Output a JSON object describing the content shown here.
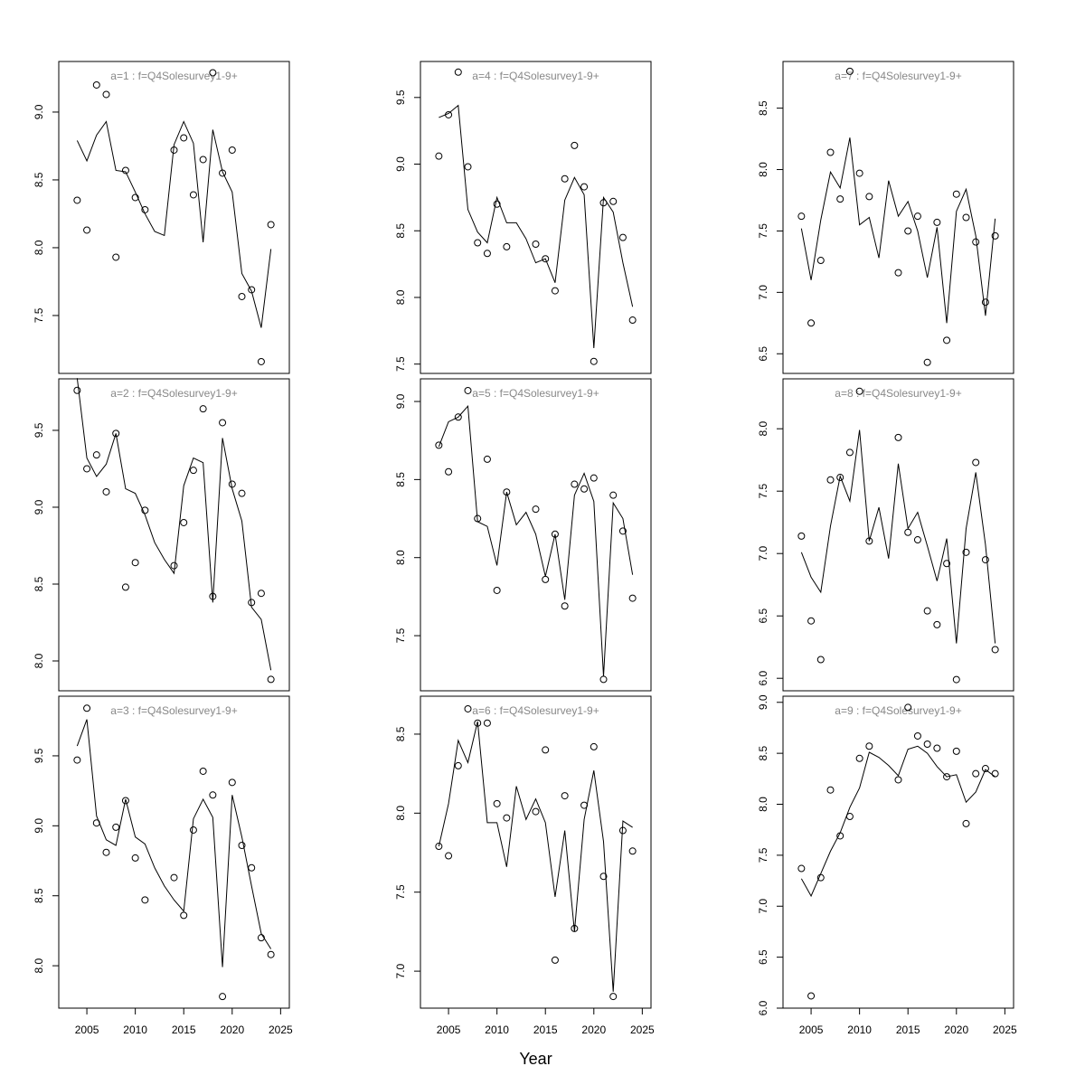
{
  "chart_data": [
    {
      "type": "line",
      "title": "a=1  :  f=Q4Solesurvey1-9+",
      "x": [
        2004,
        2005,
        2006,
        2007,
        2008,
        2009,
        2010,
        2011,
        2012,
        2013,
        2014,
        2015,
        2016,
        2017,
        2018,
        2019,
        2020,
        2021,
        2022,
        2023,
        2024
      ],
      "series": [
        {
          "mode": "points",
          "color": "#000000",
          "values": [
            8.35,
            8.13,
            9.2,
            9.13,
            7.93,
            8.57,
            8.37,
            8.28,
            null,
            null,
            8.72,
            8.81,
            8.39,
            8.65,
            9.29,
            8.55,
            8.72,
            7.64,
            7.69,
            7.16,
            8.17
          ]
        },
        {
          "mode": "line",
          "color": "#000000",
          "values": [
            8.79,
            8.64,
            8.83,
            8.93,
            8.57,
            8.56,
            8.41,
            8.25,
            8.12,
            8.09,
            8.76,
            8.93,
            8.77,
            8.04,
            8.87,
            8.56,
            8.41,
            7.81,
            7.68,
            7.41,
            7.99
          ]
        }
      ],
      "xlim": [
        2002.1,
        2025.9
      ],
      "ylim": [
        7.073,
        9.373
      ],
      "yticks": [
        {
          "value": 7.5,
          "label": "7.5"
        },
        {
          "value": 8,
          "label": "8.0"
        },
        {
          "value": 8.5,
          "label": "8.5"
        },
        {
          "value": 9,
          "label": "9.0"
        }
      ]
    },
    {
      "type": "line",
      "title": "a=2  :  f=Q4Solesurvey1-9+",
      "x": [
        2004,
        2005,
        2006,
        2007,
        2008,
        2009,
        2010,
        2011,
        2012,
        2013,
        2014,
        2015,
        2016,
        2017,
        2018,
        2019,
        2020,
        2021,
        2022,
        2023,
        2024
      ],
      "series": [
        {
          "mode": "points",
          "color": "#000000",
          "values": [
            9.76,
            9.25,
            9.34,
            9.1,
            9.48,
            8.48,
            8.64,
            8.98,
            null,
            null,
            8.62,
            8.9,
            9.24,
            9.64,
            8.42,
            9.55,
            9.15,
            9.09,
            8.38,
            8.44,
            7.88
          ]
        },
        {
          "mode": "line",
          "color": "#000000",
          "values": [
            9.84,
            9.32,
            9.2,
            9.28,
            9.48,
            9.12,
            9.09,
            8.95,
            8.77,
            8.66,
            8.57,
            9.14,
            9.32,
            9.29,
            8.38,
            9.45,
            9.12,
            8.91,
            8.35,
            8.27,
            7.94
          ]
        }
      ],
      "xlim": [
        2002.1,
        2025.9
      ],
      "ylim": [
        7.806,
        9.835
      ],
      "yticks": [
        {
          "value": 8,
          "label": "8.0"
        },
        {
          "value": 8.5,
          "label": "8.5"
        },
        {
          "value": 9,
          "label": "9.0"
        },
        {
          "value": 9.5,
          "label": "9.5"
        }
      ]
    },
    {
      "type": "line",
      "title": "a=3  :  f=Q4Solesurvey1-9+",
      "x": [
        2004,
        2005,
        2006,
        2007,
        2008,
        2009,
        2010,
        2011,
        2012,
        2013,
        2014,
        2015,
        2016,
        2017,
        2018,
        2019,
        2020,
        2021,
        2022,
        2023,
        2024
      ],
      "series": [
        {
          "mode": "points",
          "color": "#000000",
          "values": [
            9.47,
            9.84,
            9.02,
            8.81,
            8.99,
            9.18,
            8.77,
            8.47,
            null,
            null,
            8.63,
            8.36,
            8.97,
            9.39,
            9.22,
            7.78,
            9.31,
            8.86,
            8.7,
            8.2,
            8.08
          ]
        },
        {
          "mode": "line",
          "color": "#000000",
          "values": [
            9.57,
            9.76,
            9.07,
            8.9,
            8.86,
            9.19,
            8.92,
            8.87,
            8.7,
            8.57,
            8.47,
            8.39,
            9.05,
            9.19,
            9.06,
            7.99,
            9.22,
            8.92,
            8.57,
            8.23,
            8.12
          ]
        }
      ],
      "xlim": [
        2002.1,
        2025.9
      ],
      "ylim": [
        7.697,
        9.926
      ],
      "yticks": [
        {
          "value": 8,
          "label": "8.0"
        },
        {
          "value": 8.5,
          "label": "8.5"
        },
        {
          "value": 9,
          "label": "9.0"
        },
        {
          "value": 9.5,
          "label": "9.5"
        }
      ],
      "xticks": [
        2005,
        2010,
        2015,
        2020,
        2025
      ]
    },
    {
      "type": "line",
      "title": "a=4  :  f=Q4Solesurvey1-9+",
      "x": [
        2004,
        2005,
        2006,
        2007,
        2008,
        2009,
        2010,
        2011,
        2012,
        2013,
        2014,
        2015,
        2016,
        2017,
        2018,
        2019,
        2020,
        2021,
        2022,
        2023,
        2024
      ],
      "series": [
        {
          "mode": "points",
          "color": "#000000",
          "values": [
            9.06,
            9.37,
            9.69,
            8.98,
            8.41,
            8.33,
            8.7,
            8.38,
            null,
            null,
            8.4,
            8.29,
            8.05,
            8.89,
            9.14,
            8.83,
            7.52,
            8.71,
            8.72,
            8.45,
            7.83
          ]
        },
        {
          "mode": "line",
          "color": "#000000",
          "values": [
            9.35,
            9.38,
            9.44,
            8.66,
            8.49,
            8.41,
            8.75,
            8.56,
            8.56,
            8.44,
            8.26,
            8.29,
            8.11,
            8.73,
            8.9,
            8.77,
            7.62,
            8.75,
            8.64,
            8.26,
            7.93
          ]
        }
      ],
      "xlim": [
        2002.1,
        2025.9
      ],
      "ylim": [
        7.43,
        9.77
      ],
      "yticks": [
        {
          "value": 7.5,
          "label": "7.5"
        },
        {
          "value": 8,
          "label": "8.0"
        },
        {
          "value": 8.5,
          "label": "8.5"
        },
        {
          "value": 9,
          "label": "9.0"
        },
        {
          "value": 9.5,
          "label": "9.5"
        }
      ]
    },
    {
      "type": "line",
      "title": "a=5  :  f=Q4Solesurvey1-9+",
      "x": [
        2004,
        2005,
        2006,
        2007,
        2008,
        2009,
        2010,
        2011,
        2012,
        2013,
        2014,
        2015,
        2016,
        2017,
        2018,
        2019,
        2020,
        2021,
        2022,
        2023,
        2024
      ],
      "series": [
        {
          "mode": "points",
          "color": "#000000",
          "values": [
            8.72,
            8.55,
            8.9,
            9.07,
            8.25,
            8.63,
            7.79,
            8.42,
            null,
            null,
            8.31,
            7.86,
            8.15,
            7.69,
            8.47,
            8.44,
            8.51,
            7.22,
            8.4,
            8.17,
            7.74
          ]
        },
        {
          "mode": "line",
          "color": "#000000",
          "values": [
            8.71,
            8.87,
            8.9,
            8.97,
            8.23,
            8.2,
            7.95,
            8.42,
            8.21,
            8.29,
            8.15,
            7.88,
            8.15,
            7.73,
            8.4,
            8.54,
            8.36,
            7.24,
            8.35,
            8.25,
            7.89
          ]
        }
      ],
      "xlim": [
        2002.1,
        2025.9
      ],
      "ylim": [
        7.147,
        9.145
      ],
      "yticks": [
        {
          "value": 7.5,
          "label": "7.5"
        },
        {
          "value": 8,
          "label": "8.0"
        },
        {
          "value": 8.5,
          "label": "8.5"
        },
        {
          "value": 9,
          "label": "9.0"
        }
      ]
    },
    {
      "type": "line",
      "title": "a=6  :  f=Q4Solesurvey1-9+",
      "xlabel": "Year",
      "x": [
        2004,
        2005,
        2006,
        2007,
        2008,
        2009,
        2010,
        2011,
        2012,
        2013,
        2014,
        2015,
        2016,
        2017,
        2018,
        2019,
        2020,
        2021,
        2022,
        2023,
        2024
      ],
      "series": [
        {
          "mode": "points",
          "color": "#000000",
          "values": [
            7.79,
            7.73,
            8.3,
            8.66,
            8.57,
            8.57,
            8.06,
            7.97,
            null,
            null,
            8.01,
            8.4,
            7.07,
            8.11,
            7.27,
            8.05,
            8.42,
            7.6,
            6.84,
            7.89,
            7.76
          ]
        },
        {
          "mode": "line",
          "color": "#000000",
          "values": [
            7.79,
            8.06,
            8.46,
            8.32,
            8.58,
            7.94,
            7.94,
            7.66,
            8.17,
            7.96,
            8.09,
            7.94,
            7.47,
            7.89,
            7.25,
            7.96,
            8.27,
            7.82,
            6.87,
            7.95,
            7.91
          ]
        }
      ],
      "xlim": [
        2002.1,
        2025.9
      ],
      "ylim": [
        6.766,
        8.74
      ],
      "yticks": [
        {
          "value": 7,
          "label": "7.0"
        },
        {
          "value": 7.5,
          "label": "7.5"
        },
        {
          "value": 8,
          "label": "8.0"
        },
        {
          "value": 8.5,
          "label": "8.5"
        }
      ],
      "xticks": [
        2005,
        2010,
        2015,
        2020,
        2025
      ]
    },
    {
      "type": "line",
      "title": "a=7  :  f=Q4Solesurvey1-9+",
      "x": [
        2004,
        2005,
        2006,
        2007,
        2008,
        2009,
        2010,
        2011,
        2012,
        2013,
        2014,
        2015,
        2016,
        2017,
        2018,
        2019,
        2020,
        2021,
        2022,
        2023,
        2024
      ],
      "series": [
        {
          "mode": "points",
          "color": "#000000",
          "values": [
            7.62,
            6.75,
            7.26,
            8.14,
            7.76,
            8.8,
            7.97,
            7.78,
            null,
            null,
            7.16,
            7.5,
            7.62,
            6.43,
            7.57,
            6.61,
            7.8,
            7.61,
            7.41,
            6.92,
            7.46
          ]
        },
        {
          "mode": "line",
          "color": "#000000",
          "values": [
            7.52,
            7.1,
            7.59,
            7.98,
            7.85,
            8.26,
            7.55,
            7.61,
            7.28,
            7.91,
            7.62,
            7.74,
            7.5,
            7.12,
            7.53,
            6.75,
            7.66,
            7.84,
            7.46,
            6.81,
            7.6
          ]
        }
      ],
      "xlim": [
        2002.1,
        2025.9
      ],
      "ylim": [
        6.34,
        8.88
      ],
      "yticks": [
        {
          "value": 6.5,
          "label": "6.5"
        },
        {
          "value": 7,
          "label": "7.0"
        },
        {
          "value": 7.5,
          "label": "7.5"
        },
        {
          "value": 8,
          "label": "8.0"
        },
        {
          "value": 8.5,
          "label": "8.5"
        }
      ]
    },
    {
      "type": "line",
      "title": "a=8  :  f=Q4Solesurvey1-9+",
      "x": [
        2004,
        2005,
        2006,
        2007,
        2008,
        2009,
        2010,
        2011,
        2012,
        2013,
        2014,
        2015,
        2016,
        2017,
        2018,
        2019,
        2020,
        2021,
        2022,
        2023,
        2024
      ],
      "series": [
        {
          "mode": "points",
          "color": "#000000",
          "values": [
            7.14,
            6.46,
            6.15,
            7.59,
            7.61,
            7.81,
            8.3,
            7.1,
            null,
            null,
            7.93,
            7.17,
            7.11,
            6.54,
            6.43,
            6.92,
            5.99,
            7.01,
            7.73,
            6.95,
            6.23
          ]
        },
        {
          "mode": "line",
          "color": "#000000",
          "values": [
            7.01,
            6.81,
            6.69,
            7.22,
            7.62,
            7.42,
            7.99,
            7.1,
            7.37,
            6.96,
            7.72,
            7.2,
            7.33,
            7.06,
            6.78,
            7.12,
            6.28,
            7.2,
            7.65,
            7.07,
            6.28
          ]
        }
      ],
      "xlim": [
        2002.1,
        2025.9
      ],
      "ylim": [
        5.9,
        8.4
      ],
      "yticks": [
        {
          "value": 6,
          "label": "6.0"
        },
        {
          "value": 6.5,
          "label": "6.5"
        },
        {
          "value": 7,
          "label": "7.0"
        },
        {
          "value": 7.5,
          "label": "7.5"
        },
        {
          "value": 8,
          "label": "8.0"
        }
      ]
    },
    {
      "type": "line",
      "title": "a=9  :  f=Q4Solesurvey1-9+",
      "x": [
        2004,
        2005,
        2006,
        2007,
        2008,
        2009,
        2010,
        2011,
        2012,
        2013,
        2014,
        2015,
        2016,
        2017,
        2018,
        2019,
        2020,
        2021,
        2022,
        2023,
        2024
      ],
      "series": [
        {
          "mode": "points",
          "color": "#000000",
          "values": [
            7.37,
            6.12,
            7.28,
            8.14,
            7.69,
            7.88,
            8.45,
            8.57,
            null,
            null,
            8.24,
            8.95,
            8.67,
            8.59,
            8.55,
            8.27,
            8.52,
            7.81,
            8.3,
            8.35,
            8.3
          ]
        },
        {
          "mode": "line",
          "color": "#000000",
          "values": [
            7.27,
            7.1,
            7.32,
            7.54,
            7.72,
            7.97,
            8.16,
            8.51,
            8.46,
            8.38,
            8.28,
            8.54,
            8.57,
            8.5,
            8.37,
            8.27,
            8.29,
            8.02,
            8.12,
            8.34,
            8.27
          ]
        }
      ],
      "xlim": [
        2002.1,
        2025.9
      ],
      "ylim": [
        6.0,
        9.06
      ],
      "yticks": [
        {
          "value": 6,
          "label": "6.0"
        },
        {
          "value": 6.5,
          "label": "6.5"
        },
        {
          "value": 7,
          "label": "7.0"
        },
        {
          "value": 7.5,
          "label": "7.5"
        },
        {
          "value": 8,
          "label": "8.0"
        },
        {
          "value": 8.5,
          "label": "8.5"
        },
        {
          "value": 9,
          "label": "9.0"
        }
      ],
      "xticks": [
        2005,
        2010,
        2015,
        2020,
        2025
      ]
    }
  ]
}
